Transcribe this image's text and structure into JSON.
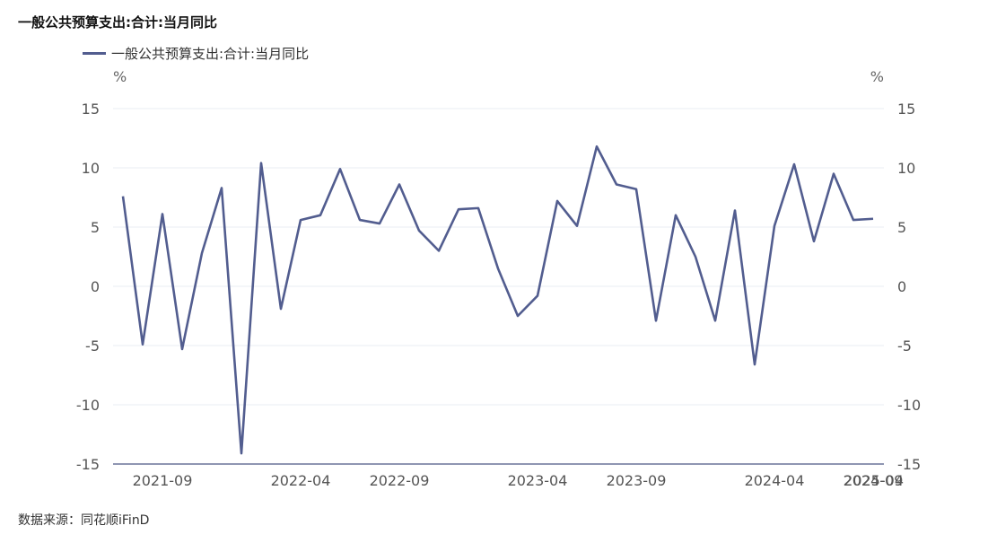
{
  "title": "一般公共预算支出:合计:当月同比",
  "legend": {
    "label": "一般公共预算支出:合计:当月同比"
  },
  "source": "数据来源：同花顺iFinD",
  "colors": {
    "series": "#525d8f",
    "grid": "#e9ecf3",
    "axis": "#6a7499"
  },
  "chart_data": {
    "type": "line",
    "y_unit_left": "%",
    "y_unit_right": "%",
    "ylim": [
      -15,
      15
    ],
    "yticks": [
      15,
      10,
      5,
      0,
      -5,
      -10,
      -15
    ],
    "x_tick_labels": [
      "2021-09",
      "2022-04",
      "2022-09",
      "2023-04",
      "2023-09",
      "2024-04",
      "2024-09",
      "2025-04"
    ],
    "series": [
      {
        "name": "一般公共预算支出:合计:当月同比",
        "values": [
          7.6,
          -4.9,
          6.1,
          -5.3,
          2.8,
          8.3,
          -14.1,
          10.4,
          -1.9,
          5.6,
          6.0,
          9.9,
          5.6,
          5.3,
          8.6,
          4.7,
          3.0,
          6.5,
          6.6,
          1.5,
          -2.5,
          -0.8,
          7.2,
          5.1,
          11.8,
          8.6,
          8.2,
          -2.9,
          6.0,
          2.5,
          -2.9,
          6.4,
          -6.6,
          5.1,
          10.3,
          3.8,
          9.5,
          5.6,
          5.7
        ]
      }
    ]
  }
}
